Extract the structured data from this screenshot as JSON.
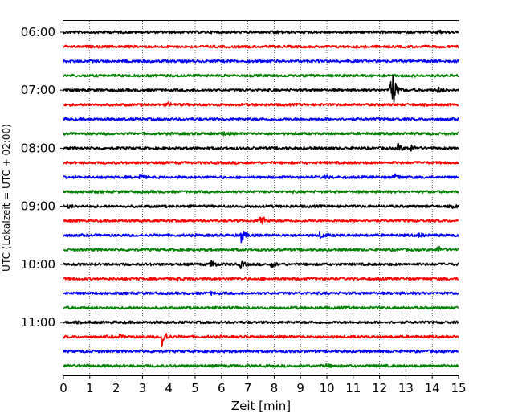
{
  "chart_data": {
    "type": "line",
    "title": "",
    "xlabel": "Zeit  [min]",
    "ylabel": "UTC (Lokalzeit = UTC + 02:00)",
    "xlim": [
      0,
      15
    ],
    "x_ticks": [
      0,
      1,
      2,
      3,
      4,
      5,
      6,
      7,
      8,
      9,
      10,
      11,
      12,
      13,
      14,
      15
    ],
    "y_tick_labels": [
      "06:00",
      "07:00",
      "08:00",
      "09:00",
      "10:00",
      "11:00"
    ],
    "grid": "vertical dotted",
    "trace_colors": [
      "#000000",
      "#ff0000",
      "#0000ff",
      "#008000"
    ],
    "series": [
      {
        "start": "06:00",
        "color": "#000000",
        "events": [
          [
            8.0,
            0.35
          ],
          [
            14.2,
            0.4
          ]
        ]
      },
      {
        "start": "06:15",
        "color": "#ff0000",
        "events": []
      },
      {
        "start": "06:30",
        "color": "#0000ff",
        "events": []
      },
      {
        "start": "06:45",
        "color": "#008000",
        "events": []
      },
      {
        "start": "07:00",
        "color": "#000000",
        "events": [
          [
            12.4,
            3.0
          ],
          [
            12.5,
            2.2
          ],
          [
            14.2,
            0.6
          ]
        ]
      },
      {
        "start": "07:15",
        "color": "#ff0000",
        "events": [
          [
            4.0,
            0.35
          ]
        ]
      },
      {
        "start": "07:30",
        "color": "#0000ff",
        "events": []
      },
      {
        "start": "07:45",
        "color": "#008000",
        "events": [
          [
            6.1,
            0.35
          ]
        ]
      },
      {
        "start": "08:00",
        "color": "#000000",
        "events": [
          [
            12.7,
            0.8
          ],
          [
            13.2,
            0.5
          ]
        ]
      },
      {
        "start": "08:15",
        "color": "#ff0000",
        "events": []
      },
      {
        "start": "08:30",
        "color": "#0000ff",
        "events": [
          [
            2.9,
            0.4
          ],
          [
            9.9,
            0.35
          ],
          [
            12.6,
            0.5
          ]
        ]
      },
      {
        "start": "08:45",
        "color": "#008000",
        "events": []
      },
      {
        "start": "09:00",
        "color": "#000000",
        "events": [
          [
            0.2,
            0.3
          ],
          [
            14.8,
            0.3
          ]
        ]
      },
      {
        "start": "09:15",
        "color": "#ff0000",
        "events": [
          [
            7.45,
            1.8
          ]
        ]
      },
      {
        "start": "09:30",
        "color": "#0000ff",
        "events": [
          [
            6.75,
            1.5
          ],
          [
            9.75,
            0.6
          ],
          [
            13.5,
            0.4
          ]
        ]
      },
      {
        "start": "09:45",
        "color": "#008000",
        "events": [
          [
            14.2,
            0.8
          ]
        ]
      },
      {
        "start": "10:00",
        "color": "#000000",
        "events": [
          [
            5.6,
            0.8
          ],
          [
            6.7,
            0.8
          ],
          [
            7.9,
            0.6
          ]
        ]
      },
      {
        "start": "10:15",
        "color": "#ff0000",
        "events": [
          [
            4.3,
            0.35
          ],
          [
            4.8,
            0.3
          ]
        ]
      },
      {
        "start": "10:30",
        "color": "#0000ff",
        "events": [
          [
            5.6,
            0.2
          ]
        ]
      },
      {
        "start": "10:45",
        "color": "#008000",
        "events": []
      },
      {
        "start": "11:00",
        "color": "#000000",
        "events": []
      },
      {
        "start": "11:15",
        "color": "#ff0000",
        "events": [
          [
            2.1,
            0.4
          ],
          [
            3.75,
            2.2
          ]
        ]
      },
      {
        "start": "11:30",
        "color": "#0000ff",
        "events": []
      },
      {
        "start": "11:45",
        "color": "#008000",
        "events": [
          [
            10.0,
            0.3
          ]
        ]
      }
    ]
  }
}
